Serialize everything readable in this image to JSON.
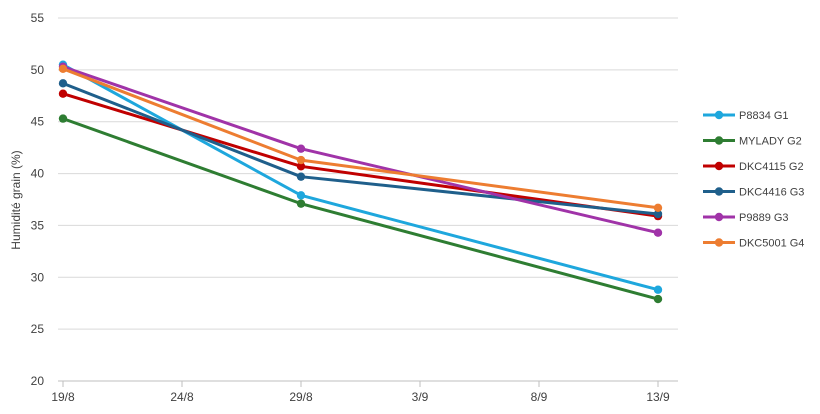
{
  "chart_data": {
    "type": "line",
    "title": "",
    "xlabel": "",
    "ylabel": "Humidité grain (%)",
    "x_ticks": [
      "19/8",
      "24/8",
      "29/8",
      "3/9",
      "8/9",
      "13/9"
    ],
    "x_tick_days": [
      0,
      5,
      10,
      15,
      20,
      25
    ],
    "x_days": [
      0,
      10,
      25
    ],
    "ylim": [
      20,
      55
    ],
    "y_ticks": [
      20,
      25,
      30,
      35,
      40,
      45,
      50,
      55
    ],
    "grid": "horizontal",
    "legend_position": "right",
    "series": [
      {
        "name": "P8834 G1",
        "color": "#1ea7dd",
        "values": [
          50.5,
          37.9,
          28.8
        ]
      },
      {
        "name": "MYLADY G2",
        "color": "#2e7d32",
        "values": [
          45.3,
          37.1,
          27.9
        ]
      },
      {
        "name": "DKC4115 G2",
        "color": "#c00000",
        "values": [
          47.7,
          40.7,
          35.9
        ]
      },
      {
        "name": "DKC4416 G3",
        "color": "#1f5f8b",
        "values": [
          48.7,
          39.7,
          36.1
        ]
      },
      {
        "name": "P9889 G3",
        "color": "#a033a8",
        "values": [
          50.3,
          42.4,
          34.3
        ]
      },
      {
        "name": "DKC5001 G4",
        "color": "#ed7d31",
        "values": [
          50.1,
          41.3,
          36.7
        ]
      }
    ]
  }
}
